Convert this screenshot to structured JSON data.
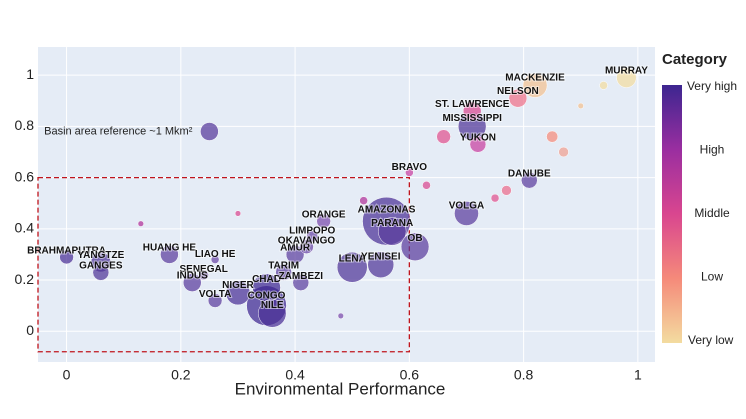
{
  "chart_data": {
    "type": "scatter",
    "x_label": "Environmental Performance",
    "xlim": [
      -0.05,
      1.03
    ],
    "ylim": [
      -0.12,
      1.11
    ],
    "xticks": [
      0,
      0.2,
      0.4,
      0.6,
      0.8,
      1
    ],
    "yticks": [
      0,
      0.2,
      0.4,
      0.6,
      0.8,
      1
    ],
    "grid": true,
    "annotation": {
      "text": "Basin area reference ~1 Mkm²",
      "x": 0.25,
      "y": 0.78,
      "size": 1,
      "color": "#5b3f9e"
    },
    "highlight_box": {
      "xlim": [
        -0.05,
        0.6
      ],
      "ylim": [
        -0.08,
        0.6
      ],
      "color": "#c0141c"
    },
    "colorbar": {
      "title": "Category",
      "ticks": [
        "Very high",
        "High",
        "Middle",
        "Low",
        "Very low"
      ],
      "colors": [
        "#3d2690",
        "#9a2ea0",
        "#d9468f",
        "#f58a7a",
        "#f3dca0"
      ]
    },
    "series": [
      {
        "labels": [
          "BRAHMAPUTRA",
          "YANGTZE",
          "GANGES",
          "HUANG HE",
          "LIAO HE",
          "SENEGAL",
          "INDUS",
          "NIGER",
          "VOLTA",
          "CHAD",
          "CONGO",
          "NILE",
          "AMUR",
          "TARIM",
          "ZAMBEZI",
          "OKAVANGO",
          "LIMPOPO",
          "ORANGE",
          "LENA",
          "YENISEI",
          "PARANA",
          "AMAZONAS",
          "OB",
          "BRAVO",
          "VOLGA",
          "DANUBE",
          "YUKON",
          "MISSISSIPPI",
          "ST. LAWRENCE",
          "NELSON",
          "MACKENZIE",
          "MURRAY",
          null,
          null,
          null,
          null,
          null,
          null,
          null,
          null,
          null,
          null,
          null,
          null
        ],
        "x": [
          0.0,
          0.06,
          0.06,
          0.18,
          0.26,
          0.24,
          0.22,
          0.3,
          0.26,
          0.35,
          0.35,
          0.36,
          0.4,
          0.38,
          0.41,
          0.42,
          0.43,
          0.45,
          0.5,
          0.55,
          0.57,
          0.56,
          0.61,
          0.6,
          0.7,
          0.81,
          0.72,
          0.71,
          0.71,
          0.79,
          0.82,
          0.98,
          0.66,
          0.75,
          0.77,
          0.85,
          0.87,
          0.9,
          0.94,
          0.63,
          0.3,
          0.13,
          0.52,
          0.48
        ],
        "values": [
          0.29,
          0.27,
          0.23,
          0.3,
          0.28,
          0.22,
          0.19,
          0.15,
          0.12,
          0.17,
          0.1,
          0.07,
          0.3,
          0.23,
          0.19,
          0.33,
          0.37,
          0.43,
          0.25,
          0.26,
          0.39,
          0.43,
          0.33,
          0.62,
          0.46,
          0.59,
          0.73,
          0.8,
          0.86,
          0.91,
          0.96,
          0.99,
          0.76,
          0.52,
          0.55,
          0.76,
          0.7,
          0.88,
          0.96,
          0.57,
          0.46,
          0.42,
          0.51,
          0.06
        ],
        "sizes": [
          0.6,
          1.2,
          0.8,
          1.0,
          0.2,
          0.3,
          1.0,
          1.8,
          0.6,
          2.4,
          4.9,
          2.4,
          1.0,
          0.8,
          0.8,
          0.6,
          0.4,
          0.6,
          2.8,
          2.1,
          2.4,
          7.1,
          2.4,
          0.2,
          1.8,
          0.8,
          0.8,
          2.4,
          1.0,
          1.0,
          1.8,
          1.2,
          0.6,
          0.2,
          0.3,
          0.4,
          0.3,
          0.1,
          0.2,
          0.2,
          0.1,
          0.1,
          0.2,
          0.1
        ],
        "colors": [
          "#4a2f95",
          "#4a2f95",
          "#4f3497",
          "#5a3c9c",
          "#6a45a5",
          "#6a45a5",
          "#5a3c9c",
          "#4a2f95",
          "#5a3c9c",
          "#3d2690",
          "#3d2690",
          "#4a2f95",
          "#5b3f9e",
          "#5b3f9e",
          "#5b3f9e",
          "#6a45a5",
          "#6a45a5",
          "#7a4aab",
          "#4f3497",
          "#4f3497",
          "#5a3c9c",
          "#4a2f95",
          "#5a3c9c",
          "#c73fa0",
          "#5a3c9c",
          "#5a3c9c",
          "#c73fa0",
          "#4f3497",
          "#d9468f",
          "#f07088",
          "#f3c090",
          "#f3dca0",
          "#e0508e",
          "#e0508e",
          "#ec6b8a",
          "#f58a7a",
          "#f0a090",
          "#f3c090",
          "#f3dca0",
          "#d9468f",
          "#d9468f",
          "#b03098",
          "#b03098",
          "#7a4aab"
        ]
      }
    ]
  }
}
